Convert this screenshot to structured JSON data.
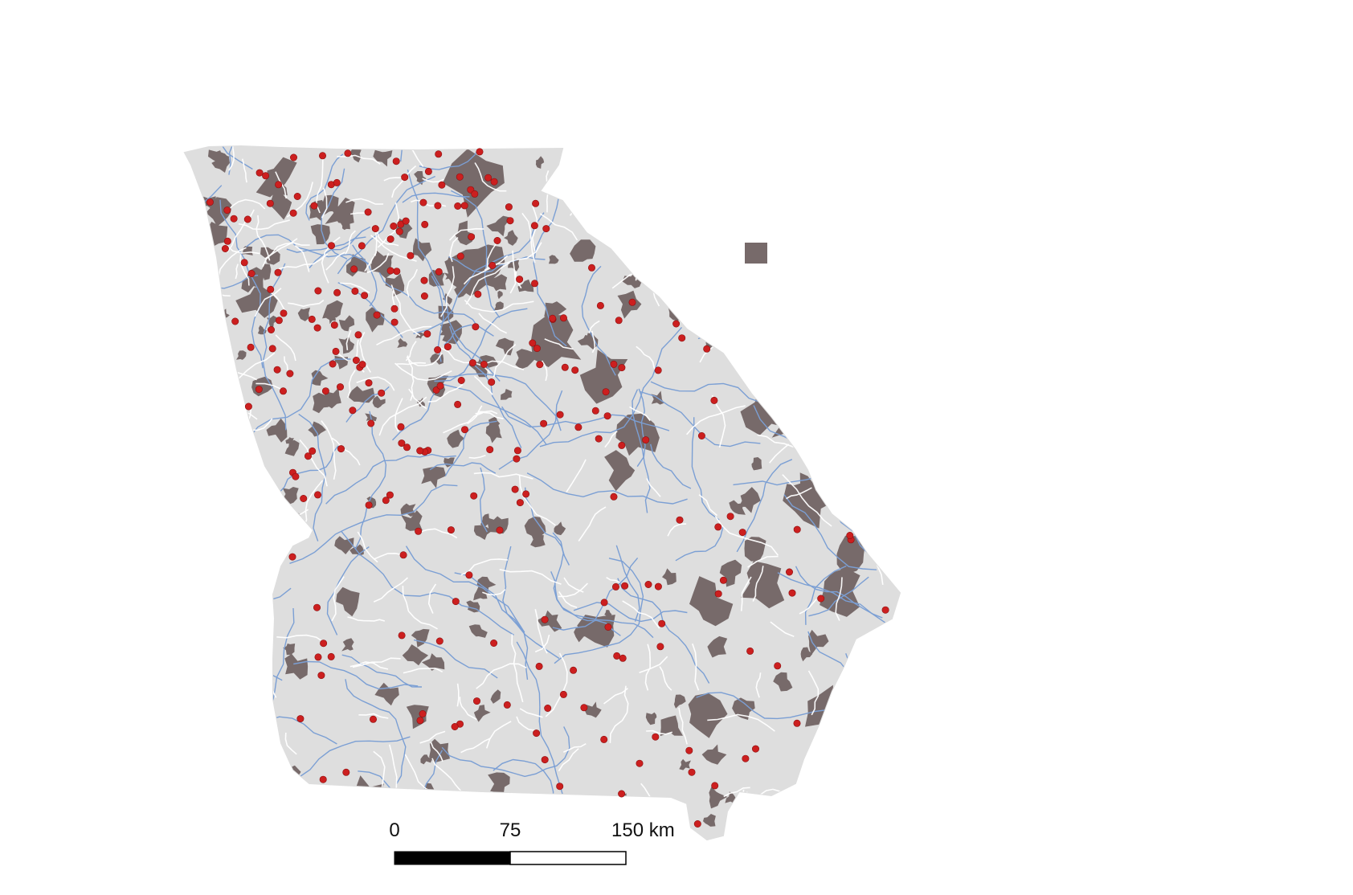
{
  "map": {
    "colors": {
      "state_fill": "#dedede",
      "urban_area": "#776a6a",
      "rivers": "#7b9fd4",
      "roads": "#ffffff",
      "settlement_points": "#cc1f1f",
      "scale_dark": "#000000",
      "scale_light": "#ffffff"
    },
    "legend": {
      "swatch_color": "#776a6a",
      "swatch_icon": "square-swatch"
    },
    "scale_bar": {
      "unit": "km",
      "ticks": [
        "0",
        "75",
        "150 km"
      ]
    }
  }
}
